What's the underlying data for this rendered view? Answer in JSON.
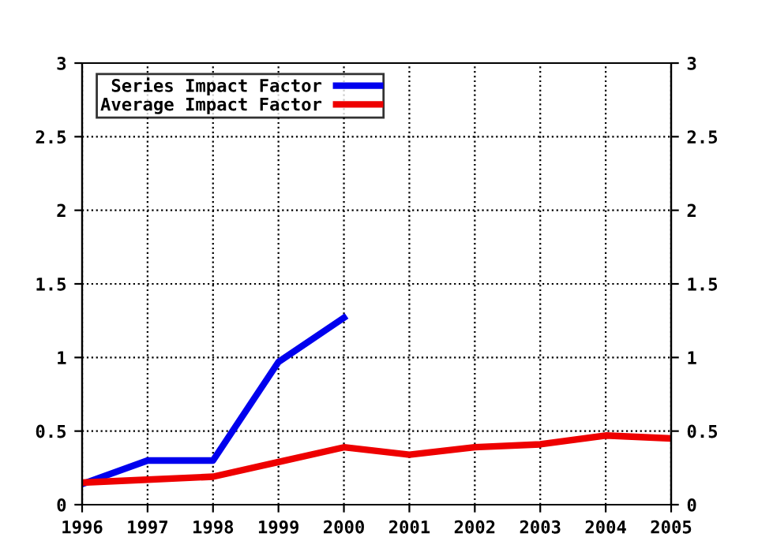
{
  "chart_data": {
    "type": "line",
    "x": [
      1996,
      1997,
      1998,
      1999,
      2000,
      2001,
      2002,
      2003,
      2004,
      2005
    ],
    "series": [
      {
        "name": "Series Impact Factor",
        "color": "#0000ee",
        "values": [
          0.14,
          0.3,
          0.3,
          0.97,
          1.27,
          null,
          null,
          null,
          null,
          null
        ]
      },
      {
        "name": "Average Impact Factor",
        "color": "#ee0000",
        "values": [
          0.15,
          0.17,
          0.19,
          0.29,
          0.39,
          0.34,
          0.39,
          0.41,
          0.47,
          0.45
        ]
      }
    ],
    "xlim": [
      1996,
      2005
    ],
    "xticks": [
      1996,
      1997,
      1998,
      1999,
      2000,
      2001,
      2002,
      2003,
      2004,
      2005
    ],
    "ylim": [
      0,
      3
    ],
    "yticks": [
      0,
      0.5,
      1,
      1.5,
      2,
      2.5,
      3
    ],
    "y2lim": [
      0,
      3
    ],
    "y2ticks": [
      0,
      0.5,
      1,
      1.5,
      2,
      2.5,
      3
    ],
    "grid": true,
    "legend": "top left",
    "line_style": "solid",
    "marker": "none"
  }
}
